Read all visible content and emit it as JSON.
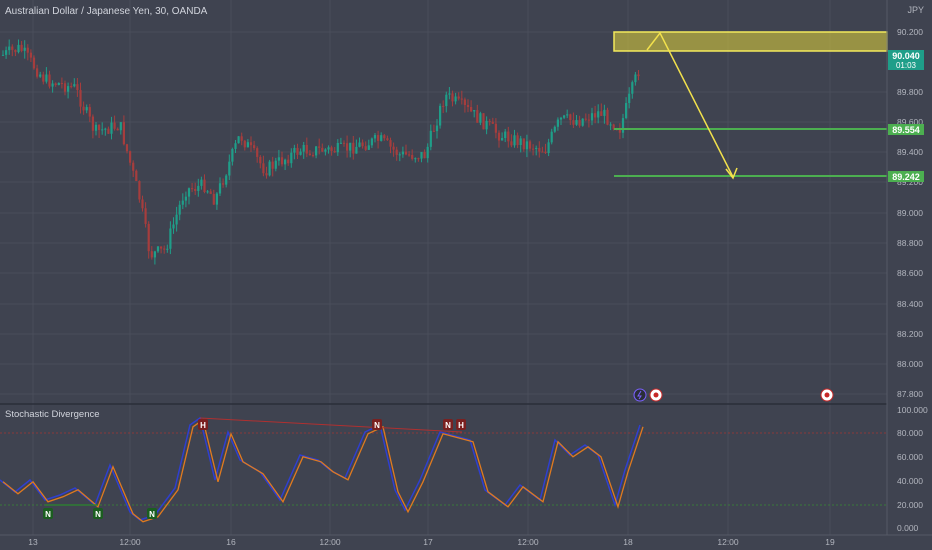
{
  "header": {
    "symbol_title": "Australian Dollar / Japanese Yen, 30, OANDA",
    "currency": "JPY"
  },
  "indicator": {
    "title": "Stochastic Divergence"
  },
  "price_axis": {
    "ticks": [
      "90.200",
      "89.800",
      "89.600",
      "89.400",
      "89.200",
      "89.000",
      "88.800",
      "88.600",
      "88.400",
      "88.200",
      "88.000",
      "87.800"
    ]
  },
  "price_labels": {
    "current": "90.040",
    "countdown": "01:03",
    "level1": "89.554",
    "level2": "89.242"
  },
  "osc_axis": {
    "ticks": [
      "100.000",
      "80.000",
      "60.000",
      "40.000",
      "20.000",
      "0.000"
    ]
  },
  "time_axis": {
    "labels": [
      "13",
      "12:00",
      "16",
      "12:00",
      "17",
      "12:00",
      "18",
      "12:00",
      "19"
    ]
  },
  "markers": {
    "bear": [
      "H",
      "N",
      "N",
      "H"
    ],
    "bull": [
      "N",
      "N",
      "N"
    ]
  },
  "colors": {
    "background": "#3f4350",
    "up": "#1f9e89",
    "down": "#a63d3d",
    "zone": "#e1d43a",
    "support": "#4caf50",
    "arrow": "#f2e14c",
    "stoch_k": "#2f3fd0",
    "stoch_d": "#e07a1f",
    "current_price_bg": "#1f9e89"
  }
}
